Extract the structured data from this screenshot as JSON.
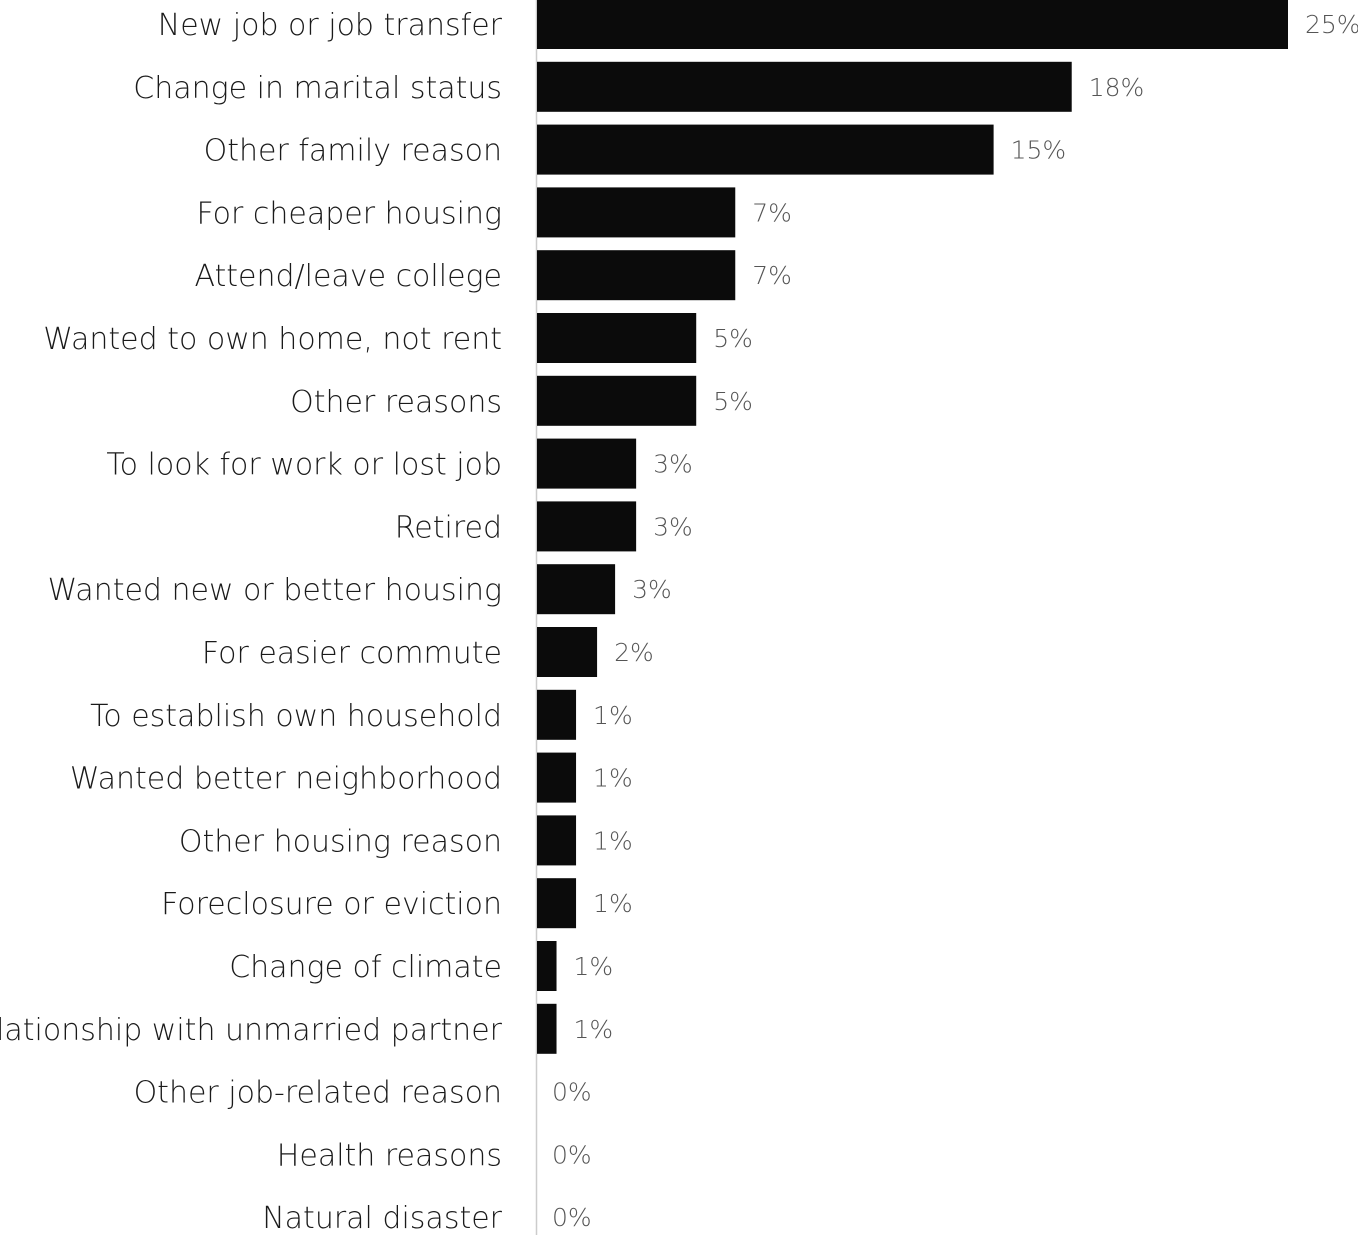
{
  "chart_data": {
    "type": "bar",
    "orientation": "horizontal",
    "title": "",
    "xlabel": "",
    "ylabel": "",
    "grid": false,
    "legend": "none",
    "bar_color": "#0b0b0b",
    "axis_color": "#cccccc",
    "xlim": [
      0,
      25
    ],
    "categories": [
      "New job or job transfer",
      "Change in marital status",
      "Other family reason",
      "For cheaper housing",
      "Attend/leave college",
      "Wanted to own home, not rent",
      "Other reasons",
      "To look for work or lost job",
      "Retired",
      "Wanted new or better housing",
      "For easier commute",
      "To establish own household",
      "Wanted better neighborhood",
      "Other housing reason",
      "Foreclosure or eviction",
      "Change of climate",
      "Relationship with unmarried partner",
      "Other job-related reason",
      "Health reasons",
      "Natural disaster"
    ],
    "values": [
      25.0,
      17.8,
      15.2,
      6.6,
      6.6,
      5.3,
      5.3,
      3.3,
      3.3,
      2.6,
      2.0,
      1.3,
      1.3,
      1.3,
      1.3,
      0.65,
      0.65,
      0,
      0,
      0
    ],
    "value_labels": [
      "25%",
      "18%",
      "15%",
      "7%",
      "7%",
      "5%",
      "5%",
      "3%",
      "3%",
      "3%",
      "2%",
      "1%",
      "1%",
      "1%",
      "1%",
      "1%",
      "1%",
      "0%",
      "0%",
      "0%"
    ]
  }
}
